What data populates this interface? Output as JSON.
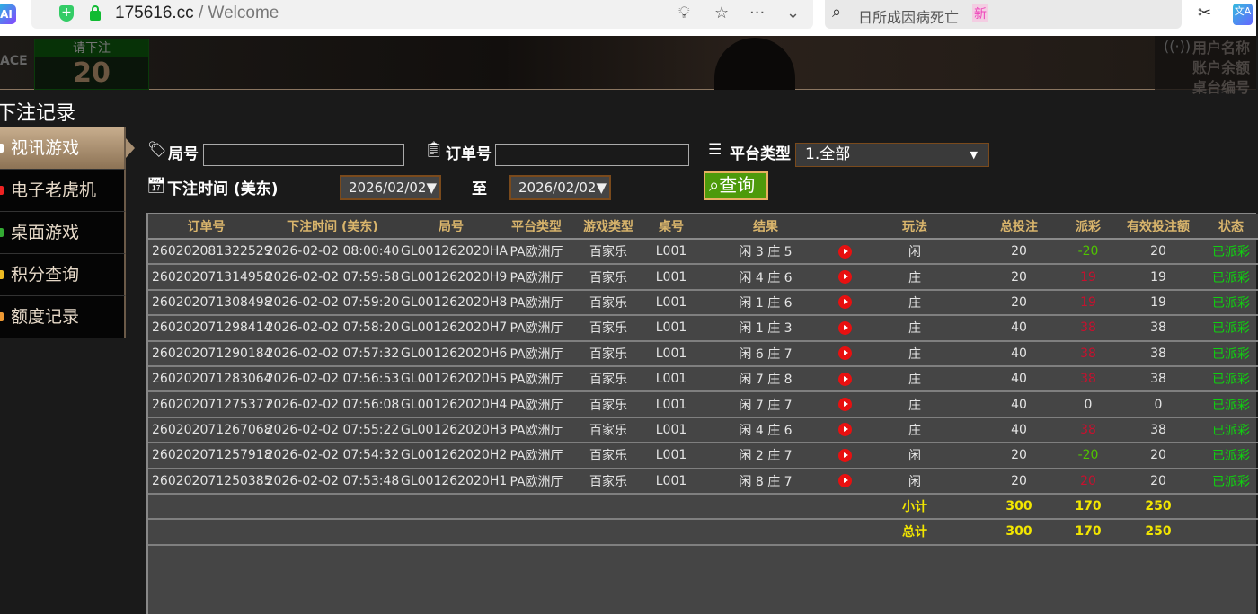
{
  "browser": {
    "url_domain": "175616.cc",
    "url_path": " / Welcome",
    "search_text": "日所成因病死亡",
    "search_badge": "新",
    "ai_label": "AI"
  },
  "banner": {
    "bet_label": "请下注",
    "bet_countdown": "20",
    "logo_fragment": "ACE",
    "info_lines": [
      "用户名称",
      "账户余额",
      "桌台编号"
    ]
  },
  "page_title": "下注记录",
  "sidebar": {
    "items": [
      {
        "label": "视讯游戏",
        "active": true,
        "color": "#fff"
      },
      {
        "label": "电子老虎机",
        "color": "#e22"
      },
      {
        "label": "桌面游戏",
        "color": "#3a3"
      },
      {
        "label": "积分查询",
        "color": "#eb2"
      },
      {
        "label": "额度记录",
        "color": "#e93"
      }
    ]
  },
  "filters": {
    "round_label": "局号",
    "round_value": "",
    "order_label": "订单号",
    "order_value": "",
    "platform_label": "平台类型",
    "platform_value": "1.全部",
    "time_label": "下注时间 (美东)",
    "date_from": "2026/02/02▼",
    "to_label": "至",
    "date_to": "2026/02/02▼",
    "query_label": "查询"
  },
  "table": {
    "headers": [
      "订单号",
      "下注时间 (美东)",
      "局号",
      "平台类型",
      "游戏类型",
      "桌号",
      "结果",
      "",
      "玩法",
      "总投注",
      "派彩",
      "有效投注额",
      "状态"
    ],
    "rows": [
      [
        "260202081322529",
        "2026-02-02 08:00:40",
        "GL001262020HA",
        "PA欧洲厅",
        "百家乐",
        "L001",
        "闲 3 庄 5",
        "",
        "闲",
        "20",
        "-20",
        "20",
        "已派彩"
      ],
      [
        "260202071314958",
        "2026-02-02 07:59:58",
        "GL001262020H9",
        "PA欧洲厅",
        "百家乐",
        "L001",
        "闲 4 庄 6",
        "",
        "庄",
        "20",
        "19",
        "19",
        "已派彩"
      ],
      [
        "260202071308498",
        "2026-02-02 07:59:20",
        "GL001262020H8",
        "PA欧洲厅",
        "百家乐",
        "L001",
        "闲 1 庄 6",
        "",
        "庄",
        "20",
        "19",
        "19",
        "已派彩"
      ],
      [
        "260202071298414",
        "2026-02-02 07:58:20",
        "GL001262020H7",
        "PA欧洲厅",
        "百家乐",
        "L001",
        "闲 1 庄 3",
        "",
        "庄",
        "40",
        "38",
        "38",
        "已派彩"
      ],
      [
        "260202071290184",
        "2026-02-02 07:57:32",
        "GL001262020H6",
        "PA欧洲厅",
        "百家乐",
        "L001",
        "闲 6 庄 7",
        "",
        "庄",
        "40",
        "38",
        "38",
        "已派彩"
      ],
      [
        "260202071283064",
        "2026-02-02 07:56:53",
        "GL001262020H5",
        "PA欧洲厅",
        "百家乐",
        "L001",
        "闲 7 庄 8",
        "",
        "庄",
        "40",
        "38",
        "38",
        "已派彩"
      ],
      [
        "260202071275377",
        "2026-02-02 07:56:08",
        "GL001262020H4",
        "PA欧洲厅",
        "百家乐",
        "L001",
        "闲 7 庄 7",
        "",
        "庄",
        "40",
        "0",
        "0",
        "已派彩"
      ],
      [
        "260202071267068",
        "2026-02-02 07:55:22",
        "GL001262020H3",
        "PA欧洲厅",
        "百家乐",
        "L001",
        "闲 4 庄 6",
        "",
        "庄",
        "40",
        "38",
        "38",
        "已派彩"
      ],
      [
        "260202071257918",
        "2026-02-02 07:54:32",
        "GL001262020H2",
        "PA欧洲厅",
        "百家乐",
        "L001",
        "闲 2 庄 7",
        "",
        "闲",
        "20",
        "-20",
        "20",
        "已派彩"
      ],
      [
        "260202071250385",
        "2026-02-02 07:53:48",
        "GL001262020H1",
        "PA欧洲厅",
        "百家乐",
        "L001",
        "闲 8 庄 7",
        "",
        "闲",
        "20",
        "20",
        "20",
        "已派彩"
      ]
    ],
    "subtotal": {
      "label": "小计",
      "total_bet": "300",
      "payout": "170",
      "valid_bet": "250"
    },
    "total": {
      "label": "总计",
      "total_bet": "300",
      "payout": "170",
      "valid_bet": "250"
    }
  },
  "colors": {
    "header_text": "#d9b56c",
    "payout_positive": "#c8102e",
    "payout_negative": "#4fc400",
    "status": "#10d010",
    "summary": "#f2e600",
    "query_button": "#4d9a0b"
  }
}
